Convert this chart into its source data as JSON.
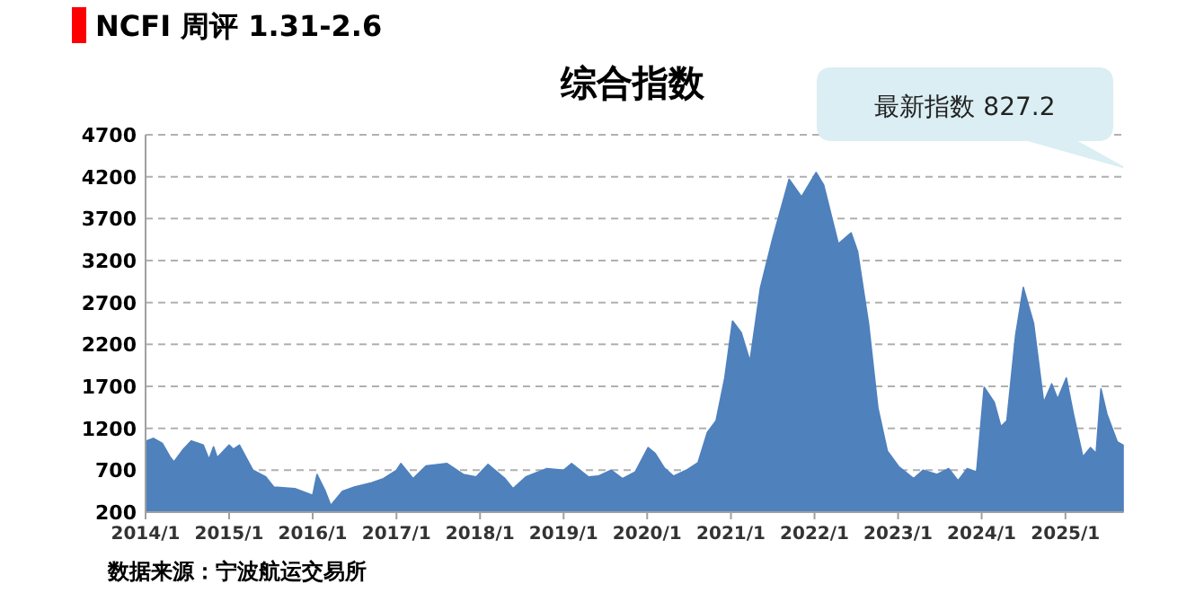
{
  "chart_data": {
    "type": "area",
    "subtitle": "NCFI 周评 1.31-2.6",
    "title": "综合指数",
    "annotations": [
      "最新指数 827.2",
      "数据来源：宁波航运交易所"
    ],
    "color": "#4f81bd",
    "grid": "y",
    "xlim": [
      "2014-01-01",
      "2025-09-10"
    ],
    "ylim": [
      200,
      4700
    ],
    "yticks": [
      200,
      700,
      1200,
      1700,
      2200,
      2700,
      3200,
      3700,
      4200,
      4700
    ],
    "xticks": [
      {
        "value": "2014-01-01",
        "label": "2014/1"
      },
      {
        "value": "2015-01-01",
        "label": "2015/1"
      },
      {
        "value": "2016-01-01",
        "label": "2016/1"
      },
      {
        "value": "2017-01-01",
        "label": "2017/1"
      },
      {
        "value": "2018-01-01",
        "label": "2018/1"
      },
      {
        "value": "2019-01-01",
        "label": "2019/1"
      },
      {
        "value": "2020-01-01",
        "label": "2020/1"
      },
      {
        "value": "2021-01-01",
        "label": "2021/1"
      },
      {
        "value": "2022-01-01",
        "label": "2022/1"
      },
      {
        "value": "2023-01-01",
        "label": "2023/1"
      },
      {
        "value": "2024-01-01",
        "label": "2024/1"
      },
      {
        "value": "2025-01-01",
        "label": "2025/1"
      }
    ],
    "x": [
      "2014-01-01",
      "2014-01-05",
      "2014-02-05",
      "2014-03-15",
      "2014-04-20",
      "2014-05-05",
      "2014-06-15",
      "2014-07-20",
      "2014-09-10",
      "2014-10-05",
      "2014-10-25",
      "2014-11-10",
      "2015-01-01",
      "2015-01-20",
      "2015-02-15",
      "2015-04-15",
      "2015-06-10",
      "2015-07-15",
      "2015-10-15",
      "2016-01-01",
      "2016-01-20",
      "2016-02-25",
      "2016-03-20",
      "2016-05-10",
      "2016-07-01",
      "2016-09-15",
      "2016-11-05",
      "2017-01-01",
      "2017-01-20",
      "2017-03-15",
      "2017-05-10",
      "2017-08-10",
      "2017-10-20",
      "2017-12-15",
      "2018-02-05",
      "2018-04-20",
      "2018-05-25",
      "2018-07-20",
      "2018-10-20",
      "2019-01-01",
      "2019-02-05",
      "2019-04-20",
      "2019-06-01",
      "2019-07-28",
      "2019-09-15",
      "2019-11-10",
      "2020-01-05",
      "2020-02-05",
      "2020-03-15",
      "2020-04-25",
      "2020-06-20",
      "2020-08-10",
      "2020-09-20",
      "2020-10-28",
      "2020-12-05",
      "2021-01-08",
      "2021-02-15",
      "2021-03-25",
      "2021-05-10",
      "2021-07-01",
      "2021-09-12",
      "2021-11-05",
      "2022-01-08",
      "2022-02-10",
      "2022-04-15",
      "2022-06-10",
      "2022-07-08",
      "2022-08-25",
      "2022-10-05",
      "2022-11-15",
      "2023-01-05",
      "2023-03-10",
      "2023-04-20",
      "2023-06-20",
      "2023-08-10",
      "2023-09-20",
      "2023-10-30",
      "2023-12-10",
      "2024-01-12",
      "2024-02-25",
      "2024-03-25",
      "2024-04-20",
      "2024-05-28",
      "2024-07-01",
      "2024-08-15",
      "2024-09-28",
      "2024-11-02",
      "2024-11-28",
      "2025-01-05",
      "2025-02-05",
      "2025-03-18",
      "2025-04-20",
      "2025-05-15",
      "2025-06-05",
      "2025-07-01",
      "2025-08-15",
      "2025-09-10"
    ],
    "values": [
      900,
      1050,
      1080,
      1020,
      850,
      800,
      950,
      1050,
      1000,
      830,
      980,
      850,
      1000,
      950,
      1000,
      700,
      620,
      500,
      480,
      400,
      650,
      450,
      280,
      450,
      500,
      550,
      600,
      700,
      780,
      600,
      750,
      780,
      650,
      620,
      770,
      600,
      480,
      620,
      720,
      700,
      780,
      620,
      630,
      700,
      600,
      680,
      970,
      900,
      730,
      630,
      700,
      790,
      1150,
      1290,
      1800,
      2480,
      2340,
      2000,
      2880,
      3450,
      4170,
      3960,
      4250,
      4100,
      3400,
      3530,
      3310,
      2450,
      1440,
      930,
      740,
      600,
      700,
      650,
      720,
      575,
      720,
      680,
      1690,
      1510,
      1220,
      1290,
      2300,
      2880,
      2450,
      1510,
      1730,
      1550,
      1800,
      1370,
      860,
      970,
      900,
      1670,
      1370,
      1040,
      1000
    ]
  }
}
